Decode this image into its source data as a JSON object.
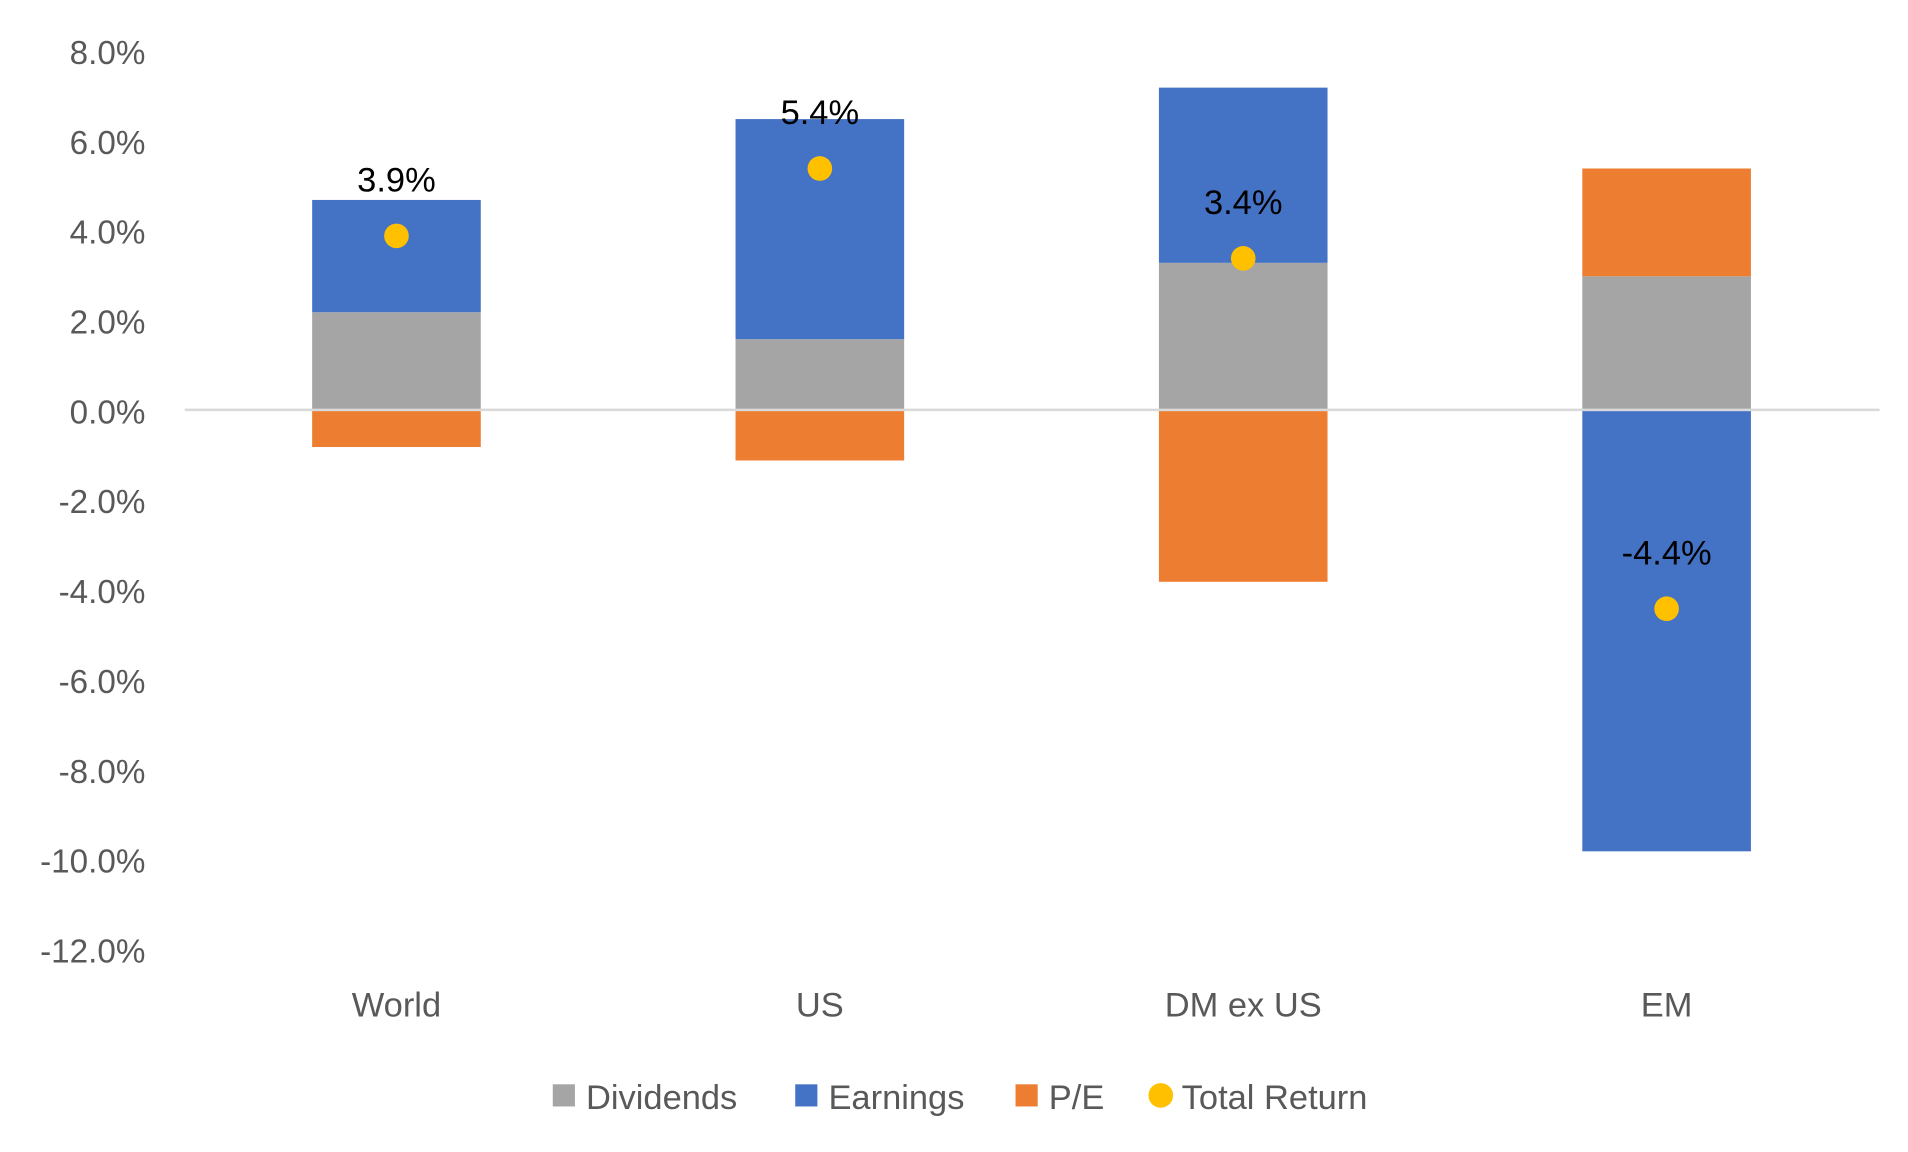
{
  "chart_data": {
    "type": "bar",
    "stacked": true,
    "categories": [
      "World",
      "US",
      "DM ex US",
      "EM"
    ],
    "series": [
      {
        "name": "Dividends",
        "kind": "bar",
        "color": "#A5A5A5",
        "values": [
          2.2,
          1.6,
          3.3,
          3.0
        ]
      },
      {
        "name": "Earnings",
        "kind": "bar",
        "color": "#4472C4",
        "values": [
          2.5,
          4.9,
          3.9,
          -9.8
        ]
      },
      {
        "name": "P/E",
        "kind": "bar",
        "color": "#ED7D31",
        "values": [
          -0.8,
          -1.1,
          -3.8,
          2.4
        ]
      },
      {
        "name": "Total Return",
        "kind": "scatter",
        "color": "#FFC000",
        "values": [
          3.9,
          5.4,
          3.4,
          -4.4
        ]
      }
    ],
    "data_labels": [
      "3.9%",
      "5.4%",
      "3.4%",
      "-4.4%"
    ],
    "yticks": [
      "8.0%",
      "6.0%",
      "4.0%",
      "2.0%",
      "0.0%",
      "-2.0%",
      "-4.0%",
      "-6.0%",
      "-8.0%",
      "-10.0%",
      "-12.0%"
    ],
    "ylim": [
      -12,
      8
    ],
    "grid": false,
    "legend_position": "bottom",
    "xlabel": "",
    "ylabel": "",
    "title": ""
  }
}
